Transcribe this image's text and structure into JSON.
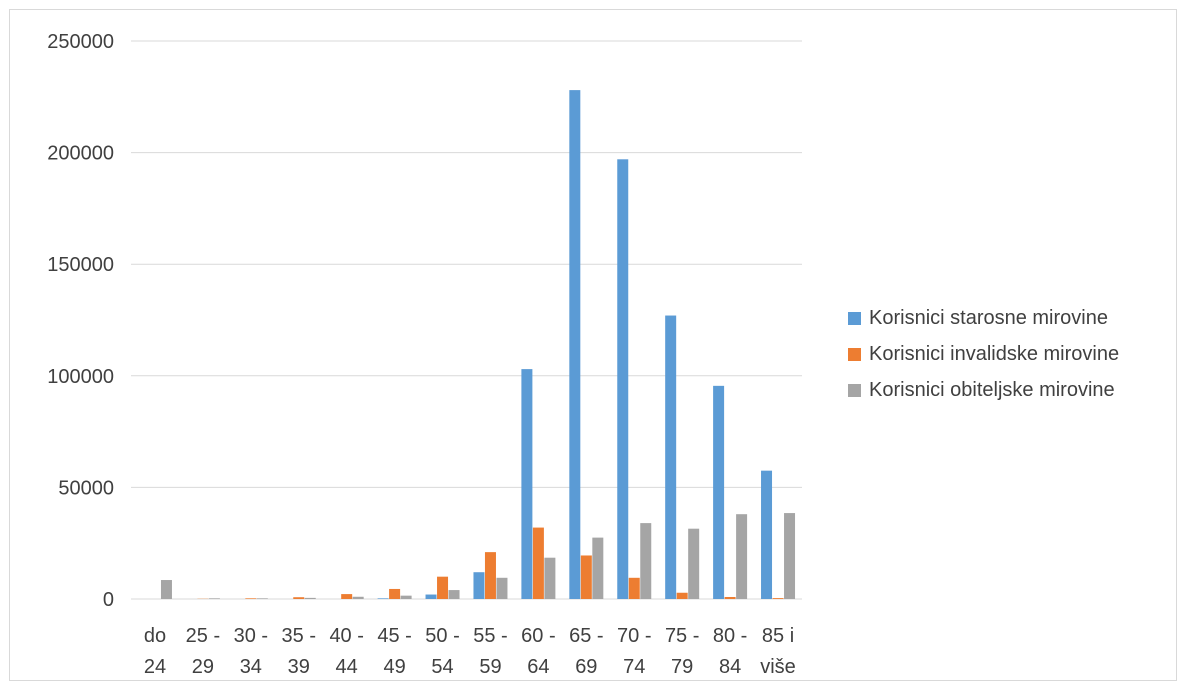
{
  "chart_data": {
    "type": "bar",
    "title": "",
    "xlabel": "",
    "ylabel": "",
    "ylim": [
      0,
      250000
    ],
    "yticks": [
      "0",
      "50000",
      "100000",
      "150000",
      "200000",
      "250000"
    ],
    "grid": true,
    "legend_position": "right",
    "categories": [
      [
        "do",
        "24"
      ],
      [
        "25 -",
        "29"
      ],
      [
        "30 -",
        "34"
      ],
      [
        "35 -",
        "39"
      ],
      [
        "40 -",
        "44"
      ],
      [
        "45 -",
        "49"
      ],
      [
        "50 -",
        "54"
      ],
      [
        "55 -",
        "59"
      ],
      [
        "60 -",
        "64"
      ],
      [
        "65 -",
        "69"
      ],
      [
        "70 -",
        "74"
      ],
      [
        "75 -",
        "79"
      ],
      [
        "80 -",
        "84"
      ],
      [
        "85 i",
        "više"
      ]
    ],
    "series": [
      {
        "name": "Korisnici starosne mirovine",
        "color": "#5b9bd5",
        "values": [
          0,
          0,
          0,
          0,
          0,
          300,
          2000,
          12000,
          103000,
          228000,
          197000,
          127000,
          95500,
          57500
        ]
      },
      {
        "name": "Korisnici invalidske mirovine",
        "color": "#ed7d31",
        "values": [
          0,
          100,
          300,
          800,
          2200,
          4500,
          10000,
          21000,
          32000,
          19500,
          9500,
          2800,
          900,
          400
        ]
      },
      {
        "name": "Korisnici obiteljske mirovine",
        "color": "#a5a5a5",
        "values": [
          8500,
          300,
          300,
          500,
          1000,
          1500,
          4000,
          9500,
          18500,
          27500,
          34000,
          31500,
          38000,
          38500
        ]
      }
    ]
  }
}
